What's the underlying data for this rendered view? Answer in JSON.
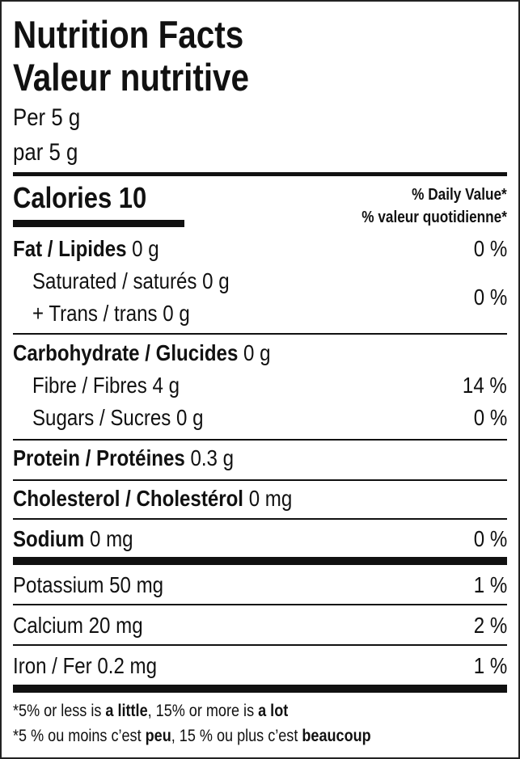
{
  "title_en": "Nutrition Facts",
  "title_fr": "Valeur nutritive",
  "serving_en": "Per 5 g",
  "serving_fr": "par 5 g",
  "calories_label": "Calories",
  "calories_value": "10",
  "dv_header_en": "% Daily Value*",
  "dv_header_fr": "% valeur quotidienne*",
  "rows": {
    "fat": {
      "label": "Fat / Lipides",
      "amount": "0 g",
      "dv": "0 %"
    },
    "saturated": {
      "label": "Saturated / saturés",
      "amount": "0 g"
    },
    "trans": {
      "label": "+ Trans / trans",
      "amount": "0 g",
      "dv": "0 %"
    },
    "carb": {
      "label": "Carbohydrate / Glucides",
      "amount": "0 g"
    },
    "fibre": {
      "label": "Fibre / Fibres",
      "amount": "4 g",
      "dv": "14 %"
    },
    "sugars": {
      "label": "Sugars / Sucres",
      "amount": "0 g",
      "dv": "0 %"
    },
    "protein": {
      "label": "Protein / Protéines",
      "amount": "0.3 g"
    },
    "cholesterol": {
      "label": "Cholesterol / Cholestérol",
      "amount": "0 mg"
    },
    "sodium": {
      "label": "Sodium",
      "amount": "0 mg",
      "dv": "0 %"
    },
    "potassium": {
      "label": "Potassium 50 mg",
      "dv": "1 %"
    },
    "calcium": {
      "label": "Calcium 20 mg",
      "dv": "2 %"
    },
    "iron": {
      "label": "Iron / Fer 0.2 mg",
      "dv": "1 %"
    }
  },
  "footnote_en": {
    "a": "*5% or less is ",
    "b": "a little",
    "c": ", 15% or more is ",
    "d": "a lot"
  },
  "footnote_fr": {
    "a": "*5 % ou moins c’est ",
    "b": "peu",
    "c": ", 15 % ou plus c’est ",
    "d": "beaucoup"
  }
}
